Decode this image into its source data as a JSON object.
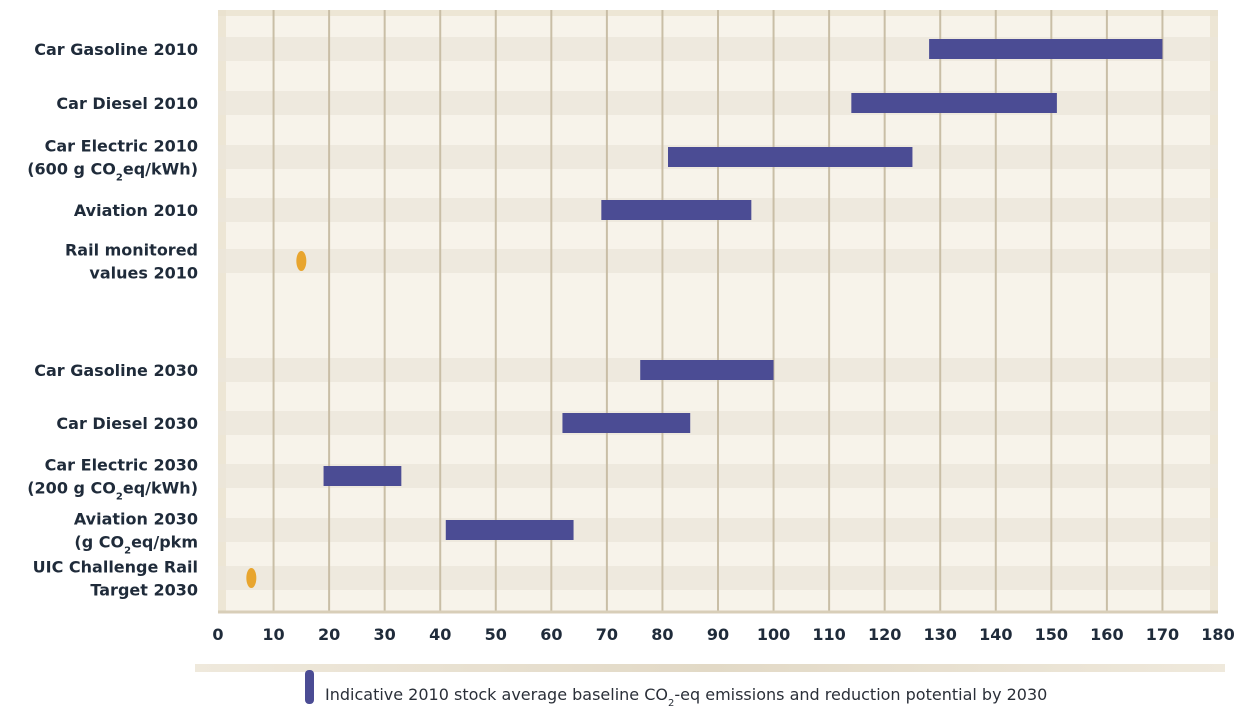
{
  "chart_data": {
    "type": "bar",
    "subtype": "floating-range-horizontal",
    "x_range": [
      0,
      180
    ],
    "x_ticks": [
      0,
      10,
      20,
      30,
      40,
      50,
      60,
      70,
      80,
      90,
      100,
      110,
      120,
      130,
      140,
      150,
      160,
      170,
      180
    ],
    "grid": "vertical",
    "bar_color": "#4b4c94",
    "point_color": "#e8a52e",
    "categories": [
      {
        "lines": [
          {
            "text": "Car Gasoline 2010"
          }
        ],
        "kind": "range",
        "min": 128,
        "max": 170
      },
      {
        "lines": [
          {
            "text": "Car Diesel 2010"
          }
        ],
        "kind": "range",
        "min": 114,
        "max": 151
      },
      {
        "lines": [
          {
            "text": "Car Electric 2010"
          },
          {
            "text": "(600 g CO",
            "sub": "2",
            "after": "eq/kWh)"
          }
        ],
        "kind": "range",
        "min": 81,
        "max": 125
      },
      {
        "lines": [
          {
            "text": "Aviation 2010"
          }
        ],
        "kind": "range",
        "min": 69,
        "max": 96
      },
      {
        "lines": [
          {
            "text": "Rail monitored"
          },
          {
            "text": "values 2010"
          }
        ],
        "kind": "point",
        "value": 15
      },
      {
        "lines": [],
        "kind": "gap"
      },
      {
        "lines": [
          {
            "text": "Car Gasoline 2030"
          }
        ],
        "kind": "range",
        "min": 76,
        "max": 100
      },
      {
        "lines": [
          {
            "text": "Car Diesel 2030"
          }
        ],
        "kind": "range",
        "min": 62,
        "max": 85
      },
      {
        "lines": [
          {
            "text": "Car Electric 2030"
          },
          {
            "text": "(200 g CO",
            "sub": "2",
            "after": "eq/kWh)"
          }
        ],
        "kind": "range",
        "min": 19,
        "max": 33
      },
      {
        "lines": [
          {
            "text": "Aviation 2030"
          },
          {
            "text": "(g CO",
            "sub": "2",
            "after": "eq/pkm"
          }
        ],
        "kind": "range",
        "min": 41,
        "max": 64
      },
      {
        "lines": [
          {
            "text": "UIC Challenge Rail"
          },
          {
            "text": "Target 2030"
          }
        ],
        "kind": "point",
        "value": 6
      }
    ],
    "legend": {
      "placement": "bottom",
      "text_before": "Indicative 2010 stock average baseline CO",
      "sub": "2",
      "text_after": "-eq emissions and reduction potential by 2030"
    }
  }
}
